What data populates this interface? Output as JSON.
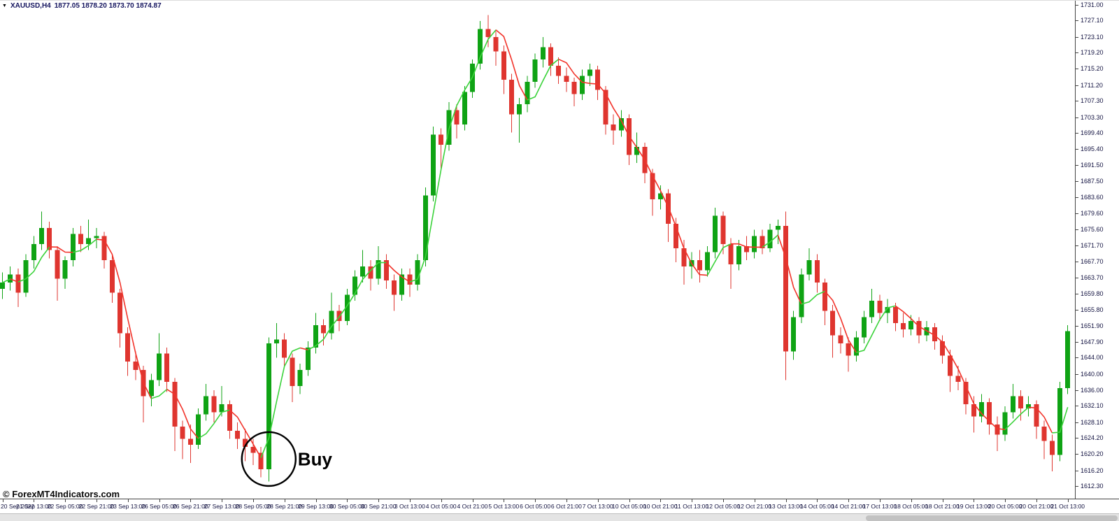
{
  "header": {
    "dropdown_icon": "▼",
    "symbol_timeframe": "XAUUSD,H4",
    "ohlc": "1877.05 1878.20 1873.70 1874.87"
  },
  "footer": {
    "copyright": "© ForexMT4Indicators.com"
  },
  "colors": {
    "background": "#ffffff",
    "bull": "#0fa314",
    "bear": "#df352f",
    "ma_up": "#3bd33b",
    "ma_down": "#f2332a",
    "axis_text": "#10103f",
    "header_text": "#15155f",
    "annotation": "#000000"
  },
  "chart_data": {
    "type": "candlestick",
    "symbol": "XAUUSD",
    "timeframe": "H4",
    "y_axis": {
      "min": 1612.3,
      "max": 1731.0,
      "labels": [
        "1731.00",
        "1727.10",
        "1723.10",
        "1719.20",
        "1715.20",
        "1711.20",
        "1707.30",
        "1703.30",
        "1699.40",
        "1695.40",
        "1691.50",
        "1687.50",
        "1683.60",
        "1679.60",
        "1675.60",
        "1671.70",
        "1667.70",
        "1663.70",
        "1659.80",
        "1655.80",
        "1651.90",
        "1647.90",
        "1644.00",
        "1640.00",
        "1636.00",
        "1632.10",
        "1628.10",
        "1624.20",
        "1620.20",
        "1616.20",
        "1612.30"
      ]
    },
    "x_axis": {
      "candles_per_label": 4,
      "labels": [
        "20 Sep 2022",
        "21 Sep 13:00",
        "22 Sep 05:00",
        "22 Sep 21:00",
        "23 Sep 13:00",
        "26 Sep 05:00",
        "26 Sep 21:00",
        "27 Sep 13:00",
        "28 Sep 05:00",
        "28 Sep 21:00",
        "29 Sep 13:00",
        "30 Sep 05:00",
        "30 Sep 21:00",
        "3 Oct 13:00",
        "4 Oct 05:00",
        "4 Oct 21:00",
        "5 Oct 13:00",
        "6 Oct 05:00",
        "6 Oct 21:00",
        "7 Oct 13:00",
        "10 Oct 05:00",
        "10 Oct 21:00",
        "11 Oct 13:00",
        "12 Oct 05:00",
        "12 Oct 21:00",
        "13 Oct 13:00",
        "14 Oct 05:00",
        "14 Oct 21:00",
        "17 Oct 13:00",
        "18 Oct 05:00",
        "18 Oct 21:00",
        "19 Oct 13:00",
        "20 Oct 05:00",
        "20 Oct 21:00",
        "21 Oct 13:00"
      ]
    },
    "moving_average": {
      "style": "hull",
      "period": 9,
      "up_color": "#3bd33b",
      "down_color": "#f2332a"
    },
    "annotations": [
      {
        "type": "circle",
        "label": "Buy",
        "candle_index": 34,
        "price": 1619.0,
        "radius_px": 38.5
      }
    ],
    "candles": [
      [
        1661.0,
        1665.0,
        1658.5,
        1662.5
      ],
      [
        1662.5,
        1666.5,
        1660.5,
        1664.5
      ],
      [
        1664.5,
        1666.0,
        1656.5,
        1660.0
      ],
      [
        1660.0,
        1669.5,
        1659.0,
        1668.0
      ],
      [
        1668.0,
        1674.0,
        1666.0,
        1672.0
      ],
      [
        1672.0,
        1680.0,
        1670.5,
        1676.0
      ],
      [
        1676.0,
        1677.5,
        1668.5,
        1670.5
      ],
      [
        1670.5,
        1671.5,
        1658.0,
        1663.5
      ],
      [
        1663.5,
        1669.0,
        1661.0,
        1668.0
      ],
      [
        1668.0,
        1676.0,
        1666.5,
        1674.5
      ],
      [
        1674.5,
        1676.5,
        1670.0,
        1672.0
      ],
      [
        1672.0,
        1678.0,
        1670.5,
        1673.5
      ],
      [
        1673.5,
        1676.0,
        1671.0,
        1674.0
      ],
      [
        1674.0,
        1675.0,
        1666.0,
        1668.0
      ],
      [
        1668.0,
        1669.5,
        1657.5,
        1660.0
      ],
      [
        1660.0,
        1661.0,
        1646.5,
        1650.0
      ],
      [
        1650.0,
        1651.5,
        1639.5,
        1643.0
      ],
      [
        1643.0,
        1645.5,
        1638.5,
        1641.0
      ],
      [
        1641.0,
        1642.0,
        1628.0,
        1634.5
      ],
      [
        1634.5,
        1640.0,
        1632.0,
        1638.5
      ],
      [
        1638.5,
        1650.0,
        1637.0,
        1645.0
      ],
      [
        1645.0,
        1646.5,
        1635.5,
        1638.0
      ],
      [
        1638.0,
        1639.0,
        1621.0,
        1627.0
      ],
      [
        1627.0,
        1628.5,
        1619.0,
        1624.0
      ],
      [
        1624.0,
        1627.5,
        1618.0,
        1622.5
      ],
      [
        1622.5,
        1631.5,
        1621.5,
        1630.0
      ],
      [
        1630.0,
        1637.5,
        1628.5,
        1634.5
      ],
      [
        1634.5,
        1636.0,
        1628.0,
        1630.5
      ],
      [
        1630.5,
        1637.0,
        1629.5,
        1632.5
      ],
      [
        1632.5,
        1633.5,
        1624.0,
        1626.0
      ],
      [
        1626.0,
        1628.0,
        1621.5,
        1624.0
      ],
      [
        1624.0,
        1626.5,
        1618.5,
        1622.0
      ],
      [
        1622.0,
        1624.0,
        1617.5,
        1620.5
      ],
      [
        1620.5,
        1622.0,
        1614.5,
        1616.5
      ],
      [
        1616.5,
        1649.0,
        1613.5,
        1647.5
      ],
      [
        1647.5,
        1652.5,
        1644.0,
        1648.5
      ],
      [
        1648.5,
        1650.0,
        1641.5,
        1644.0
      ],
      [
        1644.0,
        1645.0,
        1633.0,
        1637.0
      ],
      [
        1637.0,
        1642.5,
        1635.0,
        1641.0
      ],
      [
        1641.0,
        1648.0,
        1639.5,
        1646.5
      ],
      [
        1646.5,
        1655.0,
        1645.0,
        1652.0
      ],
      [
        1652.0,
        1653.5,
        1647.0,
        1650.0
      ],
      [
        1650.0,
        1660.0,
        1648.5,
        1655.5
      ],
      [
        1655.5,
        1657.0,
        1650.5,
        1653.0
      ],
      [
        1653.0,
        1661.0,
        1652.0,
        1659.5
      ],
      [
        1659.5,
        1665.5,
        1658.0,
        1664.0
      ],
      [
        1664.0,
        1670.5,
        1662.5,
        1666.5
      ],
      [
        1666.5,
        1668.0,
        1660.5,
        1663.5
      ],
      [
        1663.5,
        1671.5,
        1662.0,
        1668.0
      ],
      [
        1668.0,
        1669.5,
        1661.0,
        1663.0
      ],
      [
        1663.0,
        1664.5,
        1655.5,
        1659.5
      ],
      [
        1659.5,
        1666.0,
        1658.0,
        1664.5
      ],
      [
        1664.5,
        1666.0,
        1659.0,
        1662.0
      ],
      [
        1662.0,
        1669.5,
        1660.5,
        1668.0
      ],
      [
        1668.0,
        1686.0,
        1666.5,
        1684.0
      ],
      [
        1684.0,
        1701.0,
        1682.5,
        1699.0
      ],
      [
        1699.0,
        1700.5,
        1690.5,
        1696.5
      ],
      [
        1696.5,
        1707.0,
        1695.0,
        1705.0
      ],
      [
        1705.0,
        1706.5,
        1698.0,
        1701.5
      ],
      [
        1701.5,
        1711.0,
        1700.0,
        1709.5
      ],
      [
        1709.5,
        1717.5,
        1708.0,
        1716.5
      ],
      [
        1716.5,
        1727.0,
        1715.0,
        1725.0
      ],
      [
        1725.0,
        1728.5,
        1720.5,
        1723.0
      ],
      [
        1723.0,
        1724.5,
        1716.0,
        1719.5
      ],
      [
        1719.5,
        1721.0,
        1709.0,
        1712.5
      ],
      [
        1712.5,
        1714.0,
        1699.5,
        1704.0
      ],
      [
        1704.0,
        1708.0,
        1697.0,
        1706.5
      ],
      [
        1706.5,
        1713.5,
        1704.5,
        1712.0
      ],
      [
        1712.0,
        1719.0,
        1710.5,
        1717.5
      ],
      [
        1717.5,
        1723.0,
        1715.5,
        1720.5
      ],
      [
        1720.5,
        1721.5,
        1713.5,
        1716.0
      ],
      [
        1716.0,
        1718.0,
        1711.5,
        1713.5
      ],
      [
        1713.5,
        1715.5,
        1709.5,
        1712.0
      ],
      [
        1712.0,
        1713.0,
        1706.0,
        1709.0
      ],
      [
        1709.0,
        1715.0,
        1707.5,
        1713.5
      ],
      [
        1713.5,
        1716.5,
        1711.0,
        1715.0
      ],
      [
        1715.0,
        1716.0,
        1707.5,
        1710.0
      ],
      [
        1710.0,
        1711.0,
        1699.0,
        1701.5
      ],
      [
        1701.5,
        1704.0,
        1696.5,
        1700.0
      ],
      [
        1700.0,
        1705.0,
        1698.5,
        1703.0
      ],
      [
        1703.0,
        1704.0,
        1691.5,
        1694.0
      ],
      [
        1694.0,
        1699.5,
        1692.0,
        1696.0
      ],
      [
        1696.0,
        1697.0,
        1687.0,
        1689.5
      ],
      [
        1689.5,
        1690.5,
        1679.0,
        1683.0
      ],
      [
        1683.0,
        1686.5,
        1680.5,
        1684.5
      ],
      [
        1684.5,
        1685.5,
        1672.5,
        1677.0
      ],
      [
        1677.0,
        1678.5,
        1667.5,
        1671.0
      ],
      [
        1671.0,
        1673.0,
        1662.0,
        1666.5
      ],
      [
        1666.5,
        1670.0,
        1663.5,
        1668.0
      ],
      [
        1668.0,
        1670.5,
        1662.5,
        1665.5
      ],
      [
        1665.5,
        1671.5,
        1664.0,
        1670.0
      ],
      [
        1670.0,
        1681.0,
        1668.5,
        1679.0
      ],
      [
        1679.0,
        1680.0,
        1669.5,
        1672.0
      ],
      [
        1672.0,
        1673.5,
        1661.0,
        1667.0
      ],
      [
        1667.0,
        1673.0,
        1665.5,
        1671.5
      ],
      [
        1671.5,
        1674.0,
        1668.0,
        1670.0
      ],
      [
        1670.0,
        1675.5,
        1668.5,
        1674.0
      ],
      [
        1674.0,
        1675.5,
        1669.5,
        1671.0
      ],
      [
        1671.0,
        1677.0,
        1670.0,
        1675.5
      ],
      [
        1675.5,
        1678.0,
        1672.0,
        1676.5
      ],
      [
        1676.5,
        1680.0,
        1638.5,
        1645.5
      ],
      [
        1645.5,
        1655.5,
        1643.5,
        1654.0
      ],
      [
        1654.0,
        1666.0,
        1652.5,
        1664.5
      ],
      [
        1664.5,
        1671.0,
        1663.0,
        1668.0
      ],
      [
        1668.0,
        1669.5,
        1660.0,
        1662.5
      ],
      [
        1662.5,
        1663.5,
        1652.0,
        1655.5
      ],
      [
        1655.5,
        1657.0,
        1644.0,
        1649.5
      ],
      [
        1649.5,
        1651.5,
        1645.0,
        1647.5
      ],
      [
        1647.5,
        1649.0,
        1640.5,
        1644.5
      ],
      [
        1644.5,
        1650.5,
        1643.0,
        1649.0
      ],
      [
        1649.0,
        1655.5,
        1647.5,
        1654.0
      ],
      [
        1654.0,
        1661.0,
        1652.5,
        1658.0
      ],
      [
        1658.0,
        1659.5,
        1653.0,
        1655.0
      ],
      [
        1655.0,
        1658.5,
        1652.5,
        1656.5
      ],
      [
        1656.5,
        1657.5,
        1650.5,
        1652.5
      ],
      [
        1652.5,
        1655.0,
        1649.0,
        1651.0
      ],
      [
        1651.0,
        1654.5,
        1649.5,
        1653.0
      ],
      [
        1653.0,
        1654.0,
        1647.5,
        1649.5
      ],
      [
        1649.5,
        1653.0,
        1648.0,
        1651.5
      ],
      [
        1651.5,
        1652.5,
        1646.0,
        1648.0
      ],
      [
        1648.0,
        1649.5,
        1642.5,
        1644.5
      ],
      [
        1644.5,
        1646.0,
        1635.5,
        1639.5
      ],
      [
        1639.5,
        1642.0,
        1636.0,
        1638.0
      ],
      [
        1638.0,
        1639.0,
        1630.0,
        1632.5
      ],
      [
        1632.5,
        1634.5,
        1625.5,
        1629.5
      ],
      [
        1629.5,
        1635.0,
        1628.0,
        1633.0
      ],
      [
        1633.0,
        1634.0,
        1625.0,
        1627.5
      ],
      [
        1627.5,
        1629.5,
        1621.0,
        1625.0
      ],
      [
        1625.0,
        1632.0,
        1623.5,
        1630.5
      ],
      [
        1630.5,
        1637.5,
        1629.0,
        1634.5
      ],
      [
        1634.5,
        1636.0,
        1628.5,
        1631.5
      ],
      [
        1631.5,
        1634.5,
        1629.5,
        1632.5
      ],
      [
        1632.5,
        1633.5,
        1624.0,
        1627.0
      ],
      [
        1627.0,
        1628.5,
        1619.0,
        1623.5
      ],
      [
        1623.5,
        1625.0,
        1616.0,
        1620.0
      ],
      [
        1620.0,
        1638.0,
        1618.5,
        1636.5
      ],
      [
        1636.5,
        1652.0,
        1635.0,
        1650.5
      ]
    ]
  }
}
